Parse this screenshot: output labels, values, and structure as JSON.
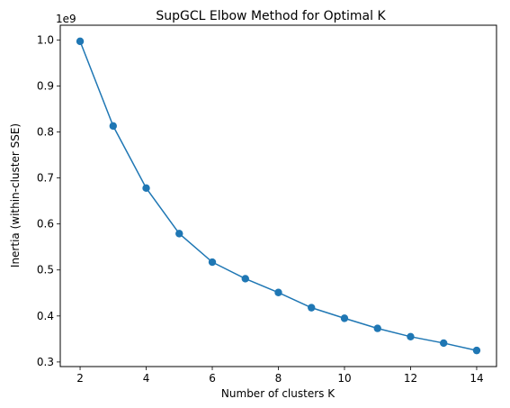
{
  "chart_data": {
    "type": "line",
    "title": "SupGCL Elbow Method for Optimal K",
    "xlabel": "Number of clusters K",
    "ylabel": "Inertia (within-cluster SSE)",
    "y_offset_label": "1e9",
    "x": [
      2,
      3,
      4,
      5,
      6,
      7,
      8,
      9,
      10,
      11,
      12,
      13,
      14
    ],
    "series": [
      {
        "values": [
          0.997,
          0.813,
          0.678,
          0.579,
          0.517,
          0.481,
          0.451,
          0.418,
          0.395,
          0.373,
          0.355,
          0.341,
          0.325
        ]
      }
    ],
    "xlim": [
      1.4,
      14.6
    ],
    "ylim": [
      0.29,
      1.032
    ],
    "x_ticks": [
      2,
      4,
      6,
      8,
      10,
      12,
      14
    ],
    "x_tick_labels": [
      "2",
      "4",
      "6",
      "8",
      "10",
      "12",
      "14"
    ],
    "y_ticks": [
      0.3,
      0.4,
      0.5,
      0.6,
      0.7,
      0.8,
      0.9,
      1.0
    ],
    "y_tick_labels": [
      "0.3",
      "0.4",
      "0.5",
      "0.6",
      "0.7",
      "0.8",
      "0.9",
      "1.0"
    ],
    "grid": false,
    "line_color": "#1f77b4",
    "marker": "circle"
  }
}
